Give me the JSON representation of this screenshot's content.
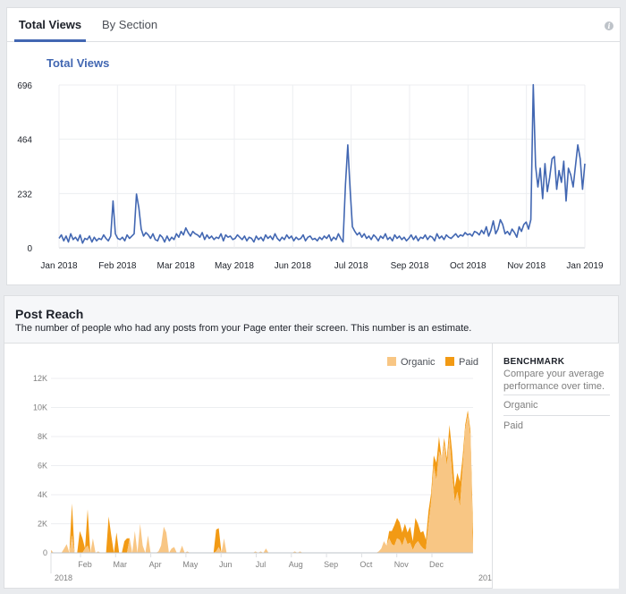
{
  "tabs": [
    {
      "label": "Total Views",
      "active": true
    },
    {
      "label": "By Section",
      "active": false
    }
  ],
  "info_icon_glyph": "i",
  "total_views": {
    "chart_title": "Total Views",
    "chart_data": {
      "type": "line",
      "title": "Total Views",
      "xlabel": "",
      "ylabel": "",
      "ylim": [
        0,
        696
      ],
      "y_ticks": [
        0,
        232,
        464,
        696
      ],
      "x_tick_labels": [
        "Jan 2018",
        "Feb 2018",
        "Mar 2018",
        "May 2018",
        "Jun 2018",
        "Jul 2018",
        "Sep 2018",
        "Oct 2018",
        "Nov 2018",
        "Jan 2019"
      ],
      "grid": true,
      "color": "#4267b2",
      "series": [
        {
          "values": [
            40,
            55,
            30,
            50,
            25,
            60,
            35,
            45,
            30,
            55,
            20,
            40,
            35,
            50,
            25,
            45,
            30,
            40,
            35,
            55,
            40,
            30,
            50,
            200,
            60,
            40,
            35,
            45,
            30,
            55,
            40,
            50,
            60,
            230,
            170,
            80,
            50,
            65,
            55,
            40,
            60,
            35,
            30,
            55,
            45,
            25,
            50,
            30,
            45,
            35,
            60,
            45,
            70,
            55,
            85,
            65,
            50,
            70,
            60,
            55,
            45,
            65,
            35,
            55,
            40,
            50,
            35,
            45,
            40,
            60,
            30,
            55,
            45,
            50,
            35,
            40,
            55,
            45,
            35,
            50,
            30,
            45,
            40,
            25,
            50,
            35,
            45,
            30,
            55,
            40,
            50,
            35,
            60,
            40,
            30,
            45,
            35,
            55,
            40,
            50,
            30,
            45,
            35,
            40,
            55,
            30,
            45,
            50,
            35,
            40,
            30,
            45,
            35,
            50,
            40,
            55,
            30,
            45,
            35,
            60,
            40,
            25,
            270,
            440,
            250,
            90,
            70,
            55,
            65,
            45,
            60,
            40,
            50,
            35,
            55,
            45,
            30,
            50,
            40,
            60,
            35,
            45,
            30,
            55,
            40,
            50,
            35,
            45,
            30,
            40,
            55,
            35,
            50,
            30,
            45,
            40,
            55,
            35,
            50,
            45,
            30,
            60,
            40,
            50,
            35,
            55,
            45,
            40,
            50,
            60,
            45,
            55,
            50,
            65,
            55,
            60,
            50,
            70,
            65,
            55,
            75,
            60,
            90,
            50,
            75,
            115,
            60,
            80,
            120,
            100,
            60,
            70,
            55,
            80,
            65,
            45,
            90,
            70,
            100,
            110,
            80,
            120,
            697,
            350,
            260,
            340,
            210,
            360,
            240,
            300,
            380,
            390,
            250,
            330,
            280,
            370,
            200,
            340,
            310,
            260,
            350,
            440,
            380,
            250,
            360
          ]
        }
      ]
    }
  },
  "post_reach": {
    "title": "Post Reach",
    "subtitle": "The number of people who had any posts from your Page enter their screen. This number is an estimate.",
    "legend": [
      {
        "label": "Organic",
        "color": "#f8c684"
      },
      {
        "label": "Paid",
        "color": "#f29a14"
      }
    ],
    "chart_data": {
      "type": "area",
      "ylim": [
        0,
        12000
      ],
      "y_ticks": [
        0,
        2000,
        4000,
        6000,
        8000,
        10000,
        12000
      ],
      "y_tick_labels": [
        "0",
        "2K",
        "4K",
        "6K",
        "8K",
        "10K",
        "12K"
      ],
      "x_tick_labels": [
        "Feb",
        "Mar",
        "Apr",
        "May",
        "Jun",
        "Jul",
        "Aug",
        "Sep",
        "Oct",
        "Nov",
        "Dec"
      ],
      "year_labels": [
        "2018",
        "201"
      ],
      "grid": true,
      "series": [
        {
          "name": "Organic",
          "color": "#f8c684",
          "values": [
            200,
            0,
            0,
            0,
            0,
            300,
            600,
            0,
            1200,
            0,
            0,
            0,
            0,
            300,
            500,
            0,
            1000,
            0,
            100,
            0,
            0,
            0,
            0,
            0,
            0,
            0,
            0,
            0,
            0,
            0,
            1000,
            0,
            1500,
            0,
            2000,
            500,
            0,
            1200,
            0,
            0,
            0,
            100,
            500,
            1800,
            1400,
            0,
            300,
            400,
            0,
            0,
            500,
            0,
            100,
            0,
            0,
            0,
            0,
            0,
            0,
            0,
            0,
            0,
            0,
            100,
            400,
            0,
            1000,
            0,
            0,
            0,
            0,
            0,
            0,
            0,
            0,
            0,
            0,
            0,
            100,
            0,
            100,
            0,
            300,
            0,
            0,
            0,
            0,
            0,
            0,
            0,
            0,
            0,
            0,
            100,
            0,
            100,
            0,
            0,
            0,
            0,
            0,
            0,
            0,
            0,
            0,
            0,
            0,
            0,
            0,
            0,
            0,
            0,
            0,
            0,
            0,
            0,
            0,
            0,
            0,
            0,
            0,
            0,
            0,
            0,
            0,
            100,
            300,
            800,
            500,
            1000,
            600,
            500,
            1000,
            900,
            500,
            1100,
            600,
            700,
            200,
            600,
            800,
            500,
            300,
            200,
            2000,
            3500,
            6000,
            5000,
            7000,
            6500,
            7500,
            6000,
            8000,
            5500,
            3500,
            4200,
            3200,
            5800,
            8500,
            9500,
            8000,
            0
          ]
        },
        {
          "name": "Paid",
          "color": "#f29a14",
          "values": [
            0,
            0,
            0,
            0,
            0,
            0,
            0,
            0,
            2200,
            0,
            0,
            1500,
            1000,
            0,
            2500,
            0,
            0,
            0,
            0,
            0,
            0,
            0,
            2500,
            1200,
            0,
            1400,
            0,
            0,
            800,
            1000,
            0,
            0,
            0,
            0,
            0,
            0,
            0,
            0,
            0,
            0,
            0,
            0,
            0,
            0,
            0,
            0,
            0,
            0,
            0,
            0,
            0,
            0,
            0,
            0,
            0,
            0,
            0,
            0,
            0,
            0,
            0,
            0,
            0,
            1500,
            1300,
            0,
            0,
            0,
            0,
            0,
            0,
            0,
            0,
            0,
            0,
            0,
            0,
            0,
            0,
            0,
            0,
            0,
            0,
            0,
            0,
            0,
            0,
            0,
            0,
            0,
            0,
            0,
            0,
            0,
            0,
            0,
            0,
            0,
            0,
            0,
            0,
            0,
            0,
            0,
            0,
            0,
            0,
            0,
            0,
            0,
            0,
            0,
            0,
            0,
            0,
            0,
            0,
            0,
            0,
            0,
            0,
            0,
            0,
            0,
            0,
            0,
            0,
            0,
            0,
            500,
            900,
            1400,
            1400,
            1200,
            900,
            900,
            800,
            1100,
            600,
            1800,
            1200,
            900,
            1200,
            700,
            900,
            600,
            700,
            1200,
            1000,
            0,
            400,
            500,
            800,
            1500,
            1000,
            1300,
            1700,
            800,
            300,
            300,
            400,
            1500,
            2500,
            2000,
            1500,
            0
          ]
        }
      ]
    },
    "benchmark": {
      "title": "BENCHMARK",
      "description": "Compare your average performance over time.",
      "items": [
        "Organic",
        "Paid"
      ]
    }
  }
}
